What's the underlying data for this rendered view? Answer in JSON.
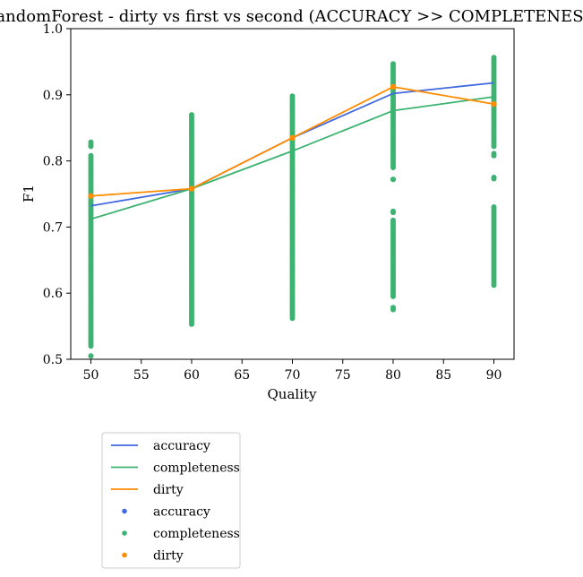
{
  "chart_data": {
    "type": "line",
    "title": "RandomForest - dirty vs first vs second (ACCURACY >> COMPLETENESS)",
    "xlabel": "Quality",
    "ylabel": "F1",
    "xlim": [
      48,
      92
    ],
    "ylim": [
      0.5,
      1.0
    ],
    "xticks": [
      50,
      55,
      60,
      65,
      70,
      75,
      80,
      85,
      90
    ],
    "yticks": [
      0.5,
      0.6,
      0.7,
      0.8,
      0.9,
      1.0
    ],
    "x": [
      50,
      60,
      70,
      80,
      90
    ],
    "grid": false,
    "legend_position": "below-left",
    "series": [
      {
        "name": "accuracy",
        "kind": "line",
        "color": "#4169e1",
        "values": [
          0.732,
          0.758,
          0.835,
          0.902,
          0.918
        ]
      },
      {
        "name": "completeness",
        "kind": "line",
        "color": "#3cb371",
        "values": [
          0.712,
          0.758,
          0.815,
          0.876,
          0.897
        ]
      },
      {
        "name": "dirty",
        "kind": "line",
        "color": "#ff8c00",
        "values": [
          0.747,
          0.758,
          0.835,
          0.912,
          0.886
        ]
      }
    ],
    "scatter": [
      {
        "name": "accuracy",
        "color": "#4169e1",
        "ranges": []
      },
      {
        "name": "completeness",
        "color": "#3cb371",
        "ranges": [
          {
            "x": 50,
            "segments": [
              [
                0.505,
                0.505
              ],
              [
                0.52,
                0.81
              ],
              [
                0.822,
                0.83
              ]
            ]
          },
          {
            "x": 60,
            "segments": [
              [
                0.553,
                0.872
              ]
            ]
          },
          {
            "x": 70,
            "segments": [
              [
                0.562,
                0.898
              ]
            ]
          },
          {
            "x": 80,
            "segments": [
              [
                0.575,
                0.58
              ],
              [
                0.595,
                0.712
              ],
              [
                0.722,
                0.724
              ],
              [
                0.772,
                0.772
              ],
              [
                0.79,
                0.948
              ]
            ]
          },
          {
            "x": 90,
            "segments": [
              [
                0.612,
                0.732
              ],
              [
                0.773,
                0.775
              ],
              [
                0.808,
                0.812
              ],
              [
                0.822,
                0.958
              ]
            ]
          }
        ]
      },
      {
        "name": "dirty",
        "color": "#ff8c00",
        "points": [
          [
            50,
            0.747
          ],
          [
            60,
            0.758
          ],
          [
            70,
            0.835
          ],
          [
            80,
            0.912
          ],
          [
            90,
            0.886
          ]
        ]
      }
    ]
  }
}
